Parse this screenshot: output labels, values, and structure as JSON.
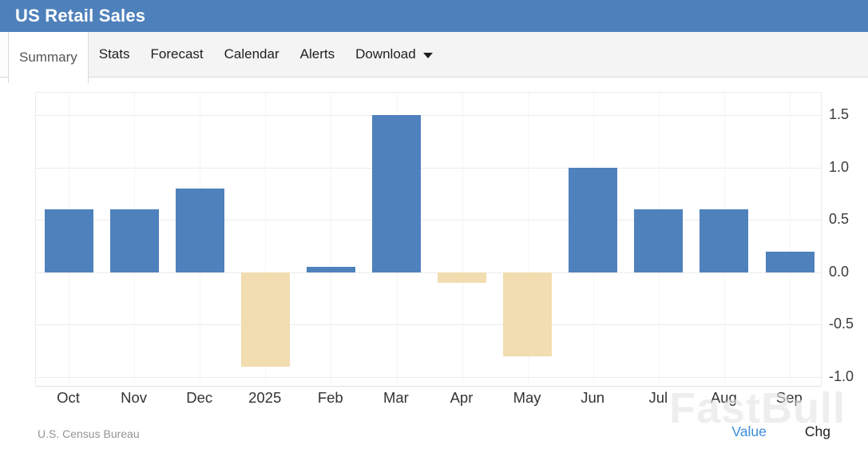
{
  "header": {
    "title": "US Retail Sales"
  },
  "tabs": [
    {
      "label": "Summary",
      "active": true
    },
    {
      "label": "Stats",
      "active": false
    },
    {
      "label": "Forecast",
      "active": false
    },
    {
      "label": "Calendar",
      "active": false
    },
    {
      "label": "Alerts",
      "active": false
    },
    {
      "label": "Download",
      "active": false,
      "has_dropdown": true
    }
  ],
  "chart_data": {
    "type": "bar",
    "title": "US Retail Sales",
    "categories": [
      "Oct",
      "Nov",
      "Dec",
      "2025",
      "Feb",
      "Mar",
      "Apr",
      "May",
      "Jun",
      "Jul",
      "Aug",
      "Sep"
    ],
    "values": [
      0.6,
      0.6,
      0.8,
      -0.9,
      0.05,
      1.5,
      -0.1,
      -0.8,
      1.0,
      0.6,
      0.6,
      0.2
    ],
    "y_ticks": [
      1.5,
      1.0,
      0.5,
      0.0,
      -0.5,
      -1.0
    ],
    "ylim": [
      -1.1,
      1.715
    ],
    "axis_side": "right",
    "grid": true,
    "positive_color": "#4f81bd",
    "negative_color": "#f2ddb0",
    "xlabel": "",
    "ylabel": ""
  },
  "footer": {
    "source": "U.S. Census Bureau",
    "value_label": "Value",
    "chg_label": "Chg",
    "value_color": "#3d8edd"
  },
  "watermark": "FastBull",
  "colors": {
    "header_bg": "#4e81bb",
    "tabbar_bg": "#f4f4f4",
    "grid_line": "#ececec"
  }
}
